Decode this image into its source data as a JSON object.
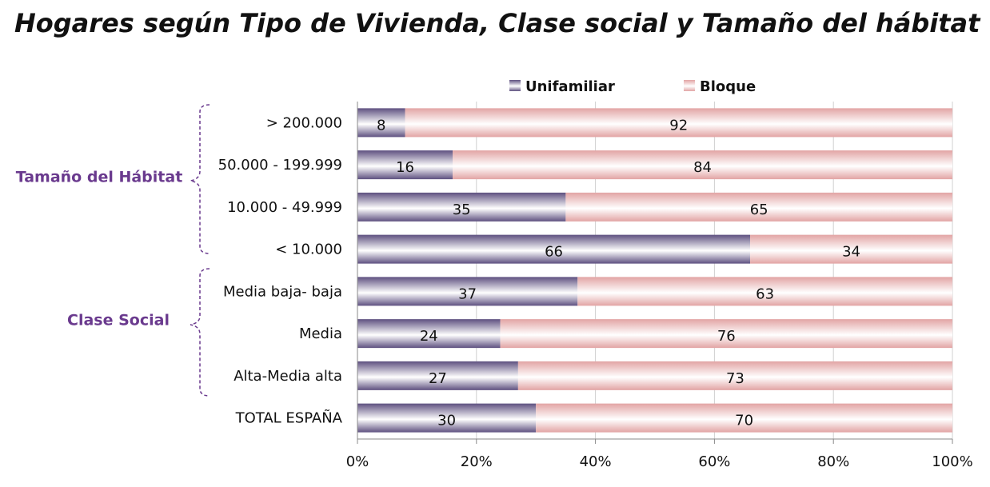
{
  "chart_data": {
    "type": "stacked-barh",
    "title": "Hogares según Tipo de Vivienda, Clase social y Tamaño del hábitat",
    "annotations": [
      "Tamaño del Hábitat",
      "Clase Social"
    ],
    "categories": [
      "> 200.000",
      "50.000 - 199.999",
      "10.000 - 49.999",
      "< 10.000",
      "Media baja- baja",
      "Media",
      "Alta-Media alta",
      "TOTAL ESPAÑA"
    ],
    "series": [
      {
        "name": "Unifamiliar",
        "color": "#5e5080",
        "values": [
          8,
          16,
          35,
          66,
          37,
          24,
          27,
          30
        ]
      },
      {
        "name": "Bloque",
        "color": "#e2a4a4",
        "values": [
          92,
          84,
          65,
          34,
          63,
          76,
          73,
          70
        ]
      }
    ],
    "xlim": [
      0,
      100
    ],
    "xticks": [
      {
        "value": 0,
        "label": "0%"
      },
      {
        "value": 20,
        "label": "20%"
      },
      {
        "value": 40,
        "label": "40%"
      },
      {
        "value": 60,
        "label": "60%"
      },
      {
        "value": 80,
        "label": "80%"
      },
      {
        "value": 100,
        "label": "100%"
      }
    ],
    "grid": true
  }
}
